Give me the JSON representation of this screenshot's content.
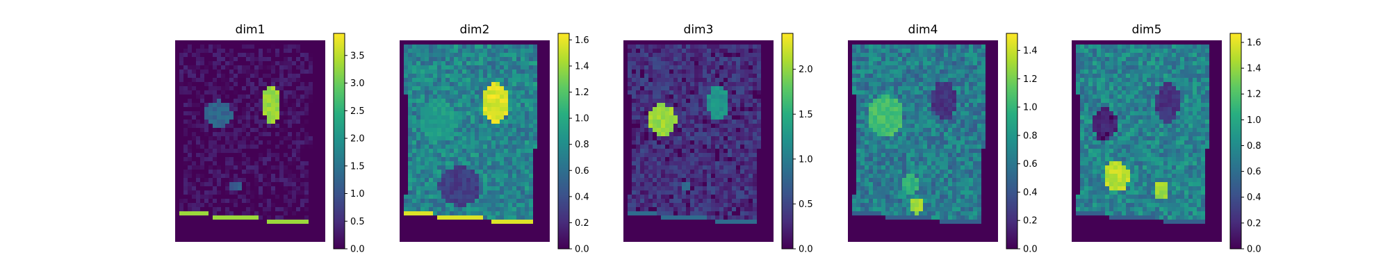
{
  "chart_data": [
    {
      "type": "heatmap",
      "title": "dim1",
      "colormap": "viridis",
      "grid": false,
      "axes_visible": false,
      "colorbar": {
        "min": 0,
        "max": 3.9,
        "ticks": [
          "0.0",
          "0.5",
          "1.0",
          "1.5",
          "2.0",
          "2.5",
          "3.0",
          "3.5"
        ]
      },
      "features": [
        {
          "name": "round region left",
          "level": 0.33
        },
        {
          "name": "bright region upper right",
          "level": 0.9
        },
        {
          "name": "small spot lower middle",
          "level": 0.3
        },
        {
          "name": "bright bottom edge",
          "level": 0.85
        }
      ]
    },
    {
      "type": "heatmap",
      "title": "dim2",
      "colormap": "viridis",
      "grid": false,
      "axes_visible": false,
      "colorbar": {
        "min": 0,
        "max": 1.65,
        "ticks": [
          "0.0",
          "0.2",
          "0.4",
          "0.6",
          "0.8",
          "1.0",
          "1.2",
          "1.4",
          "1.6"
        ]
      },
      "features": [
        {
          "name": "round region left",
          "level": 0.55
        },
        {
          "name": "bright region upper right",
          "level": 0.95
        },
        {
          "name": "dark patch lower middle",
          "level": 0.2
        },
        {
          "name": "bright bottom edge",
          "level": 0.95
        }
      ]
    },
    {
      "type": "heatmap",
      "title": "dim3",
      "colormap": "viridis",
      "grid": false,
      "axes_visible": false,
      "colorbar": {
        "min": 0,
        "max": 2.4,
        "ticks": [
          "0.0",
          "0.5",
          "1.0",
          "1.5",
          "2.0"
        ]
      },
      "features": [
        {
          "name": "bright round region left",
          "level": 0.85
        },
        {
          "name": "region upper right",
          "level": 0.5
        },
        {
          "name": "small spot lower middle",
          "level": 0.35
        }
      ]
    },
    {
      "type": "heatmap",
      "title": "dim4",
      "colormap": "viridis",
      "grid": false,
      "axes_visible": false,
      "colorbar": {
        "min": 0,
        "max": 1.52,
        "ticks": [
          "0.0",
          "0.2",
          "0.4",
          "0.6",
          "0.8",
          "1.0",
          "1.2",
          "1.4"
        ]
      },
      "features": [
        {
          "name": "round region left",
          "level": 0.7
        },
        {
          "name": "dark region upper right",
          "level": 0.15
        },
        {
          "name": "bright spots bottom",
          "level": 0.85
        }
      ]
    },
    {
      "type": "heatmap",
      "title": "dim5",
      "colormap": "viridis",
      "grid": false,
      "axes_visible": false,
      "colorbar": {
        "min": 0,
        "max": 1.67,
        "ticks": [
          "0.0",
          "0.2",
          "0.4",
          "0.6",
          "0.8",
          "1.0",
          "1.2",
          "1.4",
          "1.6"
        ]
      },
      "features": [
        {
          "name": "dark round region left",
          "level": 0.1
        },
        {
          "name": "dark region upper right",
          "level": 0.15
        },
        {
          "name": "bright spots lower",
          "level": 0.9
        }
      ]
    }
  ]
}
